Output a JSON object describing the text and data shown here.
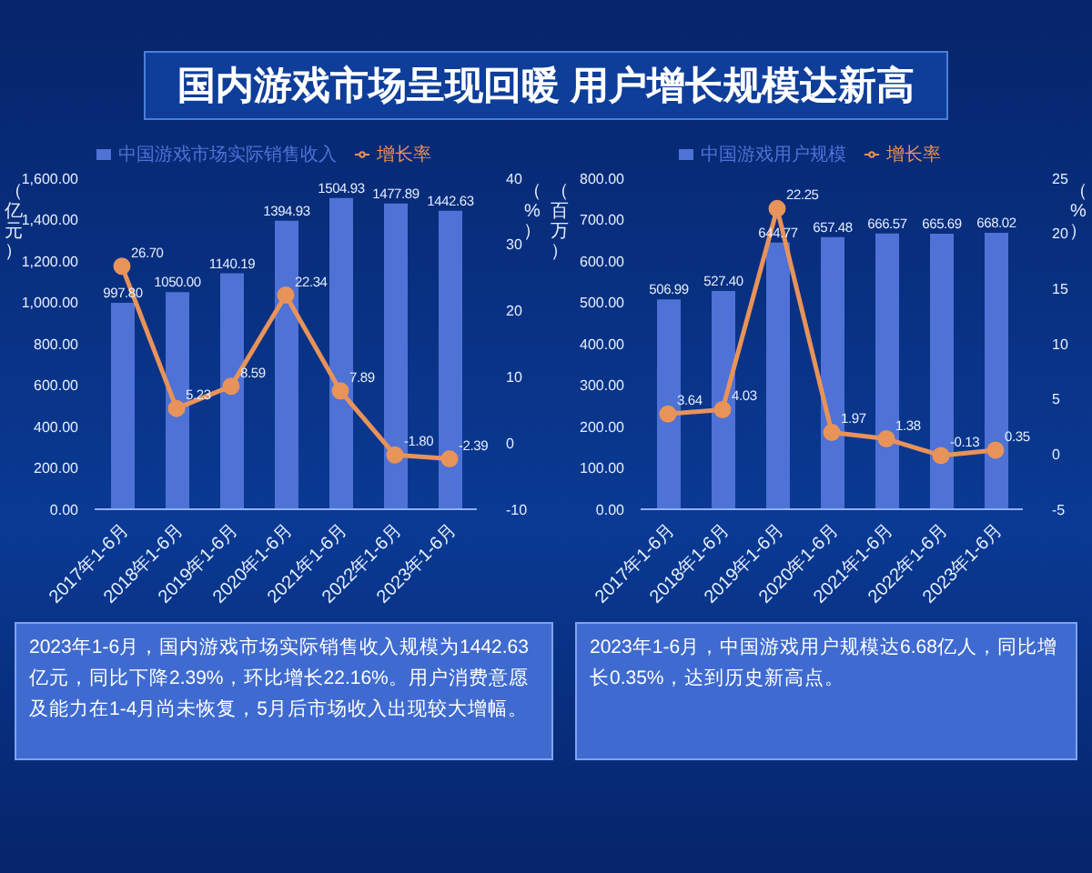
{
  "chart_data": [
    {
      "type": "bar",
      "title": "国内游戏市场呈现回暖 用户增长规模达新高",
      "ylabel": "（亿元）",
      "y2label": "（%）",
      "categories": [
        "2017年1-6月",
        "2018年1-6月",
        "2019年1-6月",
        "2020年1-6月",
        "2021年1-6月",
        "2022年1-6月",
        "2023年1-6月"
      ],
      "series": [
        {
          "name": "中国游戏市场实际销售收入",
          "color": "#4f72d6",
          "values": [
            997.8,
            1050.0,
            1140.19,
            1394.93,
            1504.93,
            1477.89,
            1442.63
          ],
          "value_labels": [
            "997.80",
            "1050.00",
            "1140.19",
            "1394.93",
            "1504.93",
            "1477.89",
            "1442.63"
          ]
        },
        {
          "name": "增长率",
          "type": "line",
          "axis": "y2",
          "color": "#e8935a",
          "values": [
            26.7,
            5.23,
            8.59,
            22.34,
            7.89,
            -1.8,
            -2.39
          ],
          "value_labels": [
            "26.70",
            "5.23",
            "8.59",
            "22.34",
            "7.89",
            "-1.80",
            "-2.39"
          ]
        }
      ],
      "ylim": [
        0,
        1600
      ],
      "yticks": [
        {
          "value": 0,
          "label": "0.00"
        },
        {
          "value": 200,
          "label": "200.00"
        },
        {
          "value": 400,
          "label": "400.00"
        },
        {
          "value": 600,
          "label": "600.00"
        },
        {
          "value": 800,
          "label": "800.00"
        },
        {
          "value": 1000,
          "label": "1,000.00"
        },
        {
          "value": 1200,
          "label": "1,200.00"
        },
        {
          "value": 1400,
          "label": "1,400.00"
        },
        {
          "value": 1600,
          "label": "1,600.00"
        }
      ],
      "y2lim": [
        -10,
        40
      ],
      "y2ticks": [
        -10,
        0,
        10,
        20,
        30,
        40
      ],
      "marker": "circle",
      "legend": "top",
      "grid": false,
      "annotations": [
        "2023年1-6月，国内游戏市场实际销售收入规模为1442.63亿元，同比下降2.39%，环比增长22.16%。用户消费意愿及能力在1-4月尚未恢复，5月后市场收入出现较大增幅。"
      ]
    },
    {
      "type": "bar",
      "ylabel": "（百万）",
      "y2label": "（%）",
      "categories": [
        "2017年1-6月",
        "2018年1-6月",
        "2019年1-6月",
        "2020年1-6月",
        "2021年1-6月",
        "2022年1-6月",
        "2023年1-6月"
      ],
      "series": [
        {
          "name": "中国游戏用户规模",
          "color": "#4f72d6",
          "values": [
            506.99,
            527.4,
            644.77,
            657.48,
            666.57,
            665.69,
            668.02
          ],
          "value_labels": [
            "506.99",
            "527.40",
            "644.77",
            "657.48",
            "666.57",
            "665.69",
            "668.02"
          ]
        },
        {
          "name": "增长率",
          "type": "line",
          "axis": "y2",
          "color": "#e8935a",
          "values": [
            3.64,
            4.03,
            22.25,
            1.97,
            1.38,
            -0.13,
            0.35
          ],
          "value_labels": [
            "3.64",
            "4.03",
            "22.25",
            "1.97",
            "1.38",
            "-0.13",
            "0.35"
          ]
        }
      ],
      "ylim": [
        0,
        800
      ],
      "yticks": [
        {
          "value": 0,
          "label": "0.00"
        },
        {
          "value": 100,
          "label": "100.00"
        },
        {
          "value": 200,
          "label": "200.00"
        },
        {
          "value": 300,
          "label": "300.00"
        },
        {
          "value": 400,
          "label": "400.00"
        },
        {
          "value": 500,
          "label": "500.00"
        },
        {
          "value": 600,
          "label": "600.00"
        },
        {
          "value": 700,
          "label": "700.00"
        },
        {
          "value": 800,
          "label": "800.00"
        }
      ],
      "y2lim": [
        -5,
        25
      ],
      "y2ticks": [
        -5,
        0,
        5,
        10,
        15,
        20,
        25
      ],
      "marker": "circle",
      "legend": "top",
      "grid": false,
      "annotations": [
        "2023年1-6月，中国游戏用户规模达6.68亿人，同比增长0.35%，达到历史新高点。"
      ]
    }
  ]
}
